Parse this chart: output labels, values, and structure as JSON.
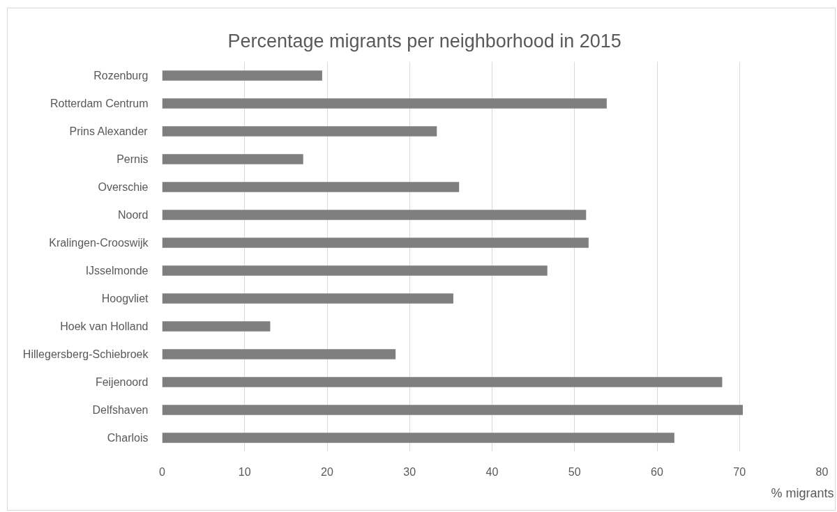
{
  "chart_data": {
    "type": "bar",
    "orientation": "horizontal",
    "title": "Percentage migrants per neighborhood in 2015",
    "xlabel": "% migrants",
    "categories": [
      "Rozenburg",
      "Rotterdam Centrum",
      "Prins Alexander",
      "Pernis",
      "Overschie",
      "Noord",
      "Kralingen-Crooswijk",
      "IJsselmonde",
      "Hoogvliet",
      "Hoek van Holland",
      "Hillegersberg-Schiebroek",
      "Feijenoord",
      "Delfshaven",
      "Charlois"
    ],
    "values": [
      19.4,
      53.9,
      33.3,
      17.1,
      36.0,
      51.4,
      51.7,
      46.7,
      35.3,
      13.1,
      28.3,
      67.9,
      70.4,
      62.1
    ],
    "color": "#7f7f7f",
    "xlim": [
      0,
      80
    ],
    "xticks": [
      0,
      10,
      20,
      30,
      40,
      50,
      60,
      70,
      80
    ],
    "grid": "x"
  }
}
